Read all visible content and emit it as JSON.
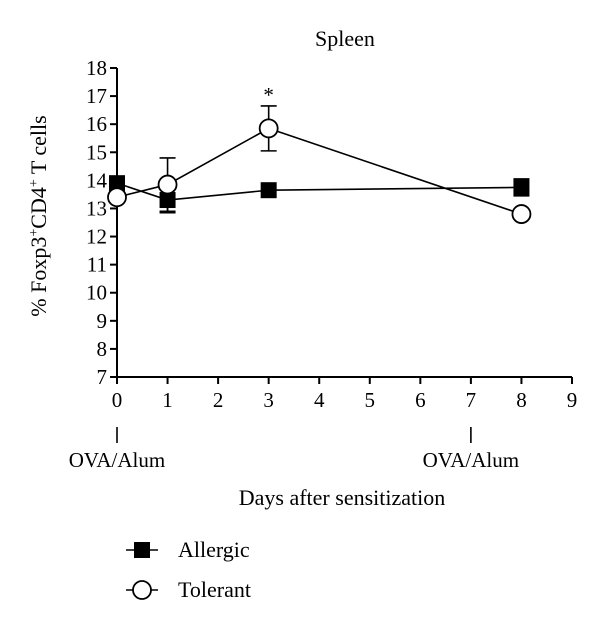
{
  "chart_data": {
    "type": "line",
    "title": "Spleen",
    "xlabel": "Days after sensitization",
    "ylabel_parts": [
      "% Foxp3",
      "+",
      "CD4",
      "+",
      " T cells"
    ],
    "xlim": [
      0,
      9
    ],
    "ylim": [
      7,
      18
    ],
    "xticks": [
      0,
      1,
      2,
      3,
      4,
      5,
      6,
      7,
      8,
      9
    ],
    "yticks": [
      7,
      8,
      9,
      10,
      11,
      12,
      13,
      14,
      15,
      16,
      17,
      18
    ],
    "grid": false,
    "legend_position": "bottom-left",
    "series": [
      {
        "name": "Allergic",
        "marker": "filled-square",
        "x": [
          0,
          1,
          3,
          8
        ],
        "y": [
          13.9,
          13.3,
          13.65,
          13.75
        ],
        "err": [
          0.0,
          0.45,
          0.0,
          0.3
        ]
      },
      {
        "name": "Tolerant",
        "marker": "open-circle",
        "x": [
          0,
          1,
          3,
          8
        ],
        "y": [
          13.4,
          13.85,
          15.85,
          12.8
        ],
        "err": [
          0.0,
          0.95,
          0.8,
          0.0
        ]
      }
    ],
    "annotations": [
      {
        "text": "*",
        "x": 3,
        "series": "Tolerant"
      },
      {
        "text": "OVA/Alum",
        "x": 0
      },
      {
        "text": "OVA/Alum",
        "x": 7
      }
    ]
  }
}
